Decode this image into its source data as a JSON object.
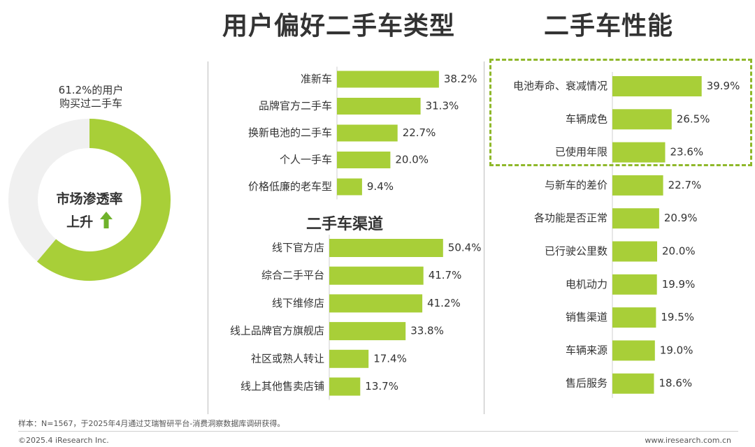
{
  "titles": {
    "preference": "用户偏好二手车类型",
    "performance": "二手车性能"
  },
  "donut": {
    "caption_line1": "61.2%的用户",
    "caption_line2": "购买过二手车",
    "center_line1": "市场渗透率",
    "center_line2": "上升",
    "percent": 61.2,
    "fill_color": "#a8cf38",
    "track_color": "#f0f0f0"
  },
  "colors": {
    "bar": "#a8cf38",
    "highlight_box": "#8fb82a",
    "text": "#333333"
  },
  "chart_data": [
    {
      "type": "bar",
      "orientation": "horizontal",
      "title": "用户偏好二手车类型",
      "categories": [
        "准新车",
        "品牌官方二手车",
        "换新电池的二手车",
        "个人一手车",
        "价格低廉的老车型"
      ],
      "values": [
        38.2,
        31.3,
        22.7,
        20.0,
        9.4
      ],
      "labels": [
        "38.2%",
        "31.3%",
        "22.7%",
        "20.0%",
        "9.4%"
      ]
    },
    {
      "type": "bar",
      "orientation": "horizontal",
      "title": "二手车渠道",
      "categories": [
        "线下官方店",
        "综合二手平台",
        "线下维修店",
        "线上品牌官方旗舰店",
        "社区或熟人转让",
        "线上其他售卖店铺"
      ],
      "values": [
        50.4,
        41.7,
        41.2,
        33.8,
        17.4,
        13.7
      ],
      "labels": [
        "50.4%",
        "41.7%",
        "41.2%",
        "33.8%",
        "17.4%",
        "13.7%"
      ]
    },
    {
      "type": "bar",
      "orientation": "horizontal",
      "title": "二手车性能",
      "categories": [
        "电池寿命、衰减情况",
        "车辆成色",
        "已使用年限",
        "与新车的差价",
        "各功能是否正常",
        "已行驶公里数",
        "电机动力",
        "销售渠道",
        "车辆来源",
        "售后服务"
      ],
      "values": [
        39.9,
        26.5,
        23.6,
        22.7,
        20.9,
        20.0,
        19.9,
        19.5,
        19.0,
        18.6
      ],
      "labels": [
        "39.9%",
        "26.5%",
        "23.6%",
        "22.7%",
        "20.9%",
        "20.0%",
        "19.9%",
        "19.5%",
        "19.0%",
        "18.6%"
      ],
      "highlighted_count": 3
    }
  ],
  "footer": {
    "note": "样本：N=1567，于2025年4月通过艾瑞智研平台-消费洞察数据库调研获得。",
    "copyright": "©2025.4 iResearch Inc.",
    "website": "www.iresearch.com.cn"
  }
}
